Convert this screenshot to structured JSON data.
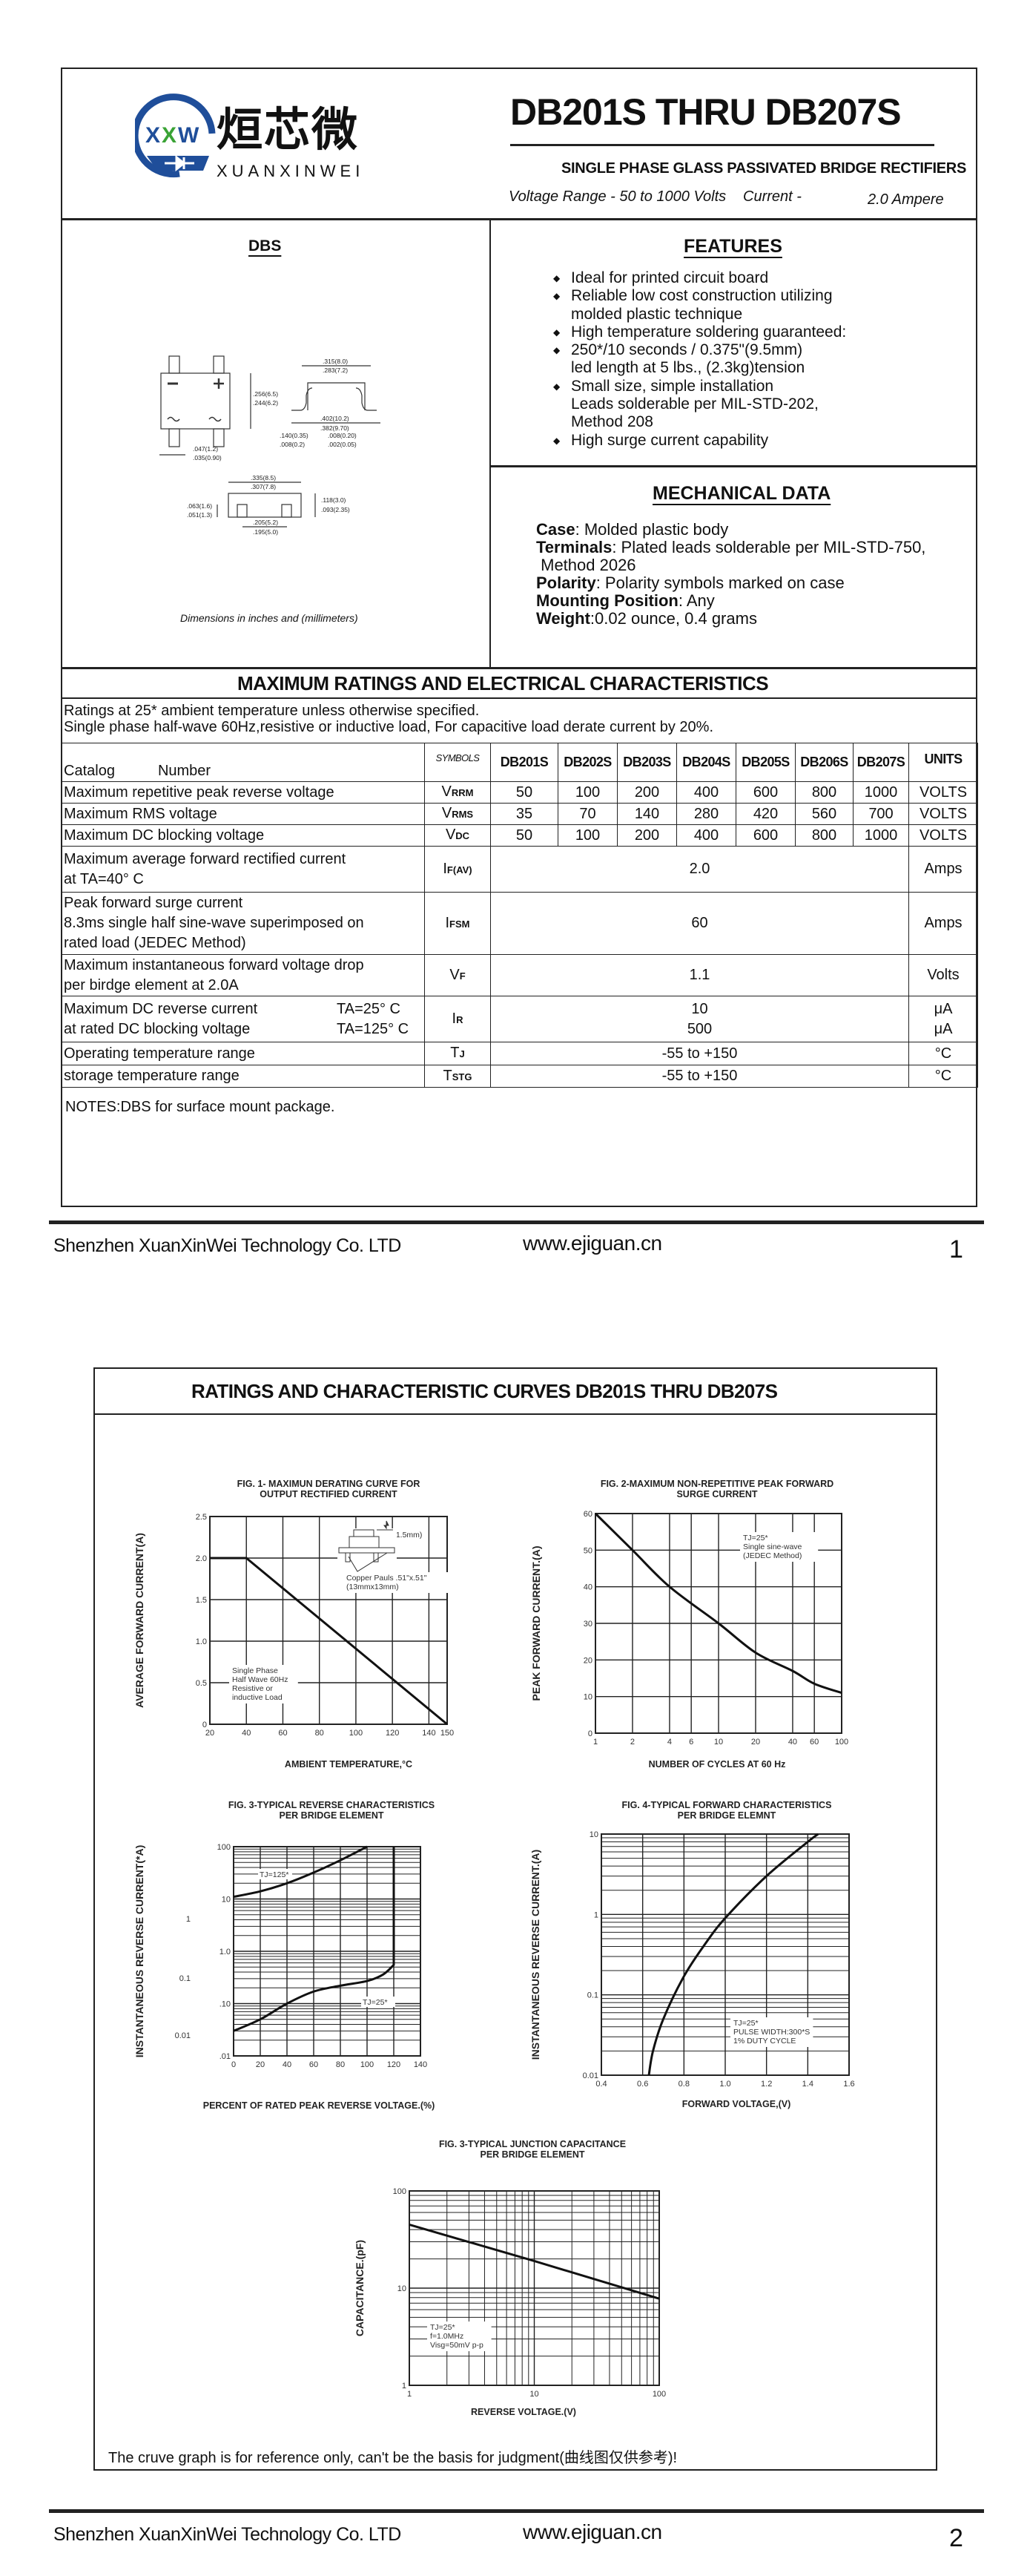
{
  "header": {
    "logo": {
      "mark": "XXW",
      "brand_cn": "烜芯微",
      "brand_en": "XUANXINWEI",
      "brand_color": "#1f4e9a",
      "accent_color": "#3aa335"
    },
    "title": "DB201S THRU DB207S",
    "subtitle": "SINGLE PHASE GLASS PASSIVATED BRIDGE RECTIFIERS",
    "voltage_range": "Voltage Range - 50 to 1000 Volts",
    "current_label": "Current -",
    "current_value": "2.0 Ampere"
  },
  "package": {
    "label": "DBS",
    "caption": "Dimensions in inches and (millimeters)",
    "dims": {
      "top_w_max": ".315(8.0)",
      "top_w_min": ".283(7.2)",
      "h_max": ".256(6.5)",
      "h_min": ".244(6.2)",
      "span_max": ".402(10.2)",
      "span_min": ".382(9.70)",
      "lead_t_max": ".140(0.35)",
      "lead_t_min": ".008(0.2)",
      "stand_max": ".008(0.20)",
      "stand_min": ".002(0.05)",
      "lead_w_max": ".047(1.2)",
      "lead_w_min": ".035(0.90)",
      "len_max": ".335(8.5)",
      "len_min": ".307(7.8)",
      "foot_max": ".063(1.6)",
      "foot_min": ".051(1.3)",
      "ht_max": ".118(3.0)",
      "ht_min": ".093(2.35)",
      "pitch_max": ".205(5.2)",
      "pitch_min": ".195(5.0)"
    }
  },
  "features": {
    "heading": "FEATURES",
    "items": [
      [
        "Ideal for printed circuit board"
      ],
      [
        "Reliable low cost construction utilizing",
        "molded plastic technique"
      ],
      [
        "High temperature soldering guaranteed:"
      ],
      [
        "250*/10 seconds / 0.375\"(9.5mm)",
        "led length at 5 lbs., (2.3kg)tension"
      ],
      [
        "Small size, simple installation",
        "Leads solderable per MIL-STD-202,",
        "Method 208"
      ],
      [
        "High surge current capability"
      ]
    ]
  },
  "mechanical": {
    "heading": "MECHANICAL DATA",
    "items": [
      {
        "key": "Case",
        "value": ": Molded plastic body"
      },
      {
        "key": "Terminals",
        "value": ": Plated leads solderable per MIL-STD-750,",
        "cont": " Method 2026"
      },
      {
        "key": "Polarity",
        "value": ": Polarity symbols marked on case"
      },
      {
        "key": "Mounting Position",
        "value": ": Any"
      },
      {
        "key": "Weight",
        "value": ":0.02 ounce, 0.4 grams"
      }
    ]
  },
  "ratings": {
    "heading": "MAXIMUM RATINGS AND ELECTRICAL CHARACTERISTICS",
    "notes": [
      "Ratings at 25* ambient temperature unless otherwise specified.",
      "Single phase half-wave 60Hz,resistive or inductive load, For capacitive load derate current by 20%."
    ],
    "table": {
      "header": {
        "catalog": "Catalog",
        "number": "Number",
        "symbols": "SYMBOLS",
        "parts": [
          "DB201S",
          "DB202S",
          "DB203S",
          "DB204S",
          "DB205S",
          "DB206S",
          "DB207S"
        ],
        "units": "UNITS"
      },
      "rows": [
        {
          "param": [
            "Maximum repetitive peak reverse voltage"
          ],
          "sym": {
            "main": "V",
            "sub": "RRM"
          },
          "values": [
            "50",
            "100",
            "200",
            "400",
            "600",
            "800",
            "1000"
          ],
          "unit": [
            "VOLTS"
          ]
        },
        {
          "param": [
            "Maximum RMS voltage"
          ],
          "sym": {
            "main": "V",
            "sub": "RMS"
          },
          "values": [
            "35",
            "70",
            "140",
            "280",
            "420",
            "560",
            "700"
          ],
          "unit": [
            "VOLTS"
          ]
        },
        {
          "param": [
            "Maximum DC blocking voltage"
          ],
          "sym": {
            "main": "V",
            "sub": "DC"
          },
          "values": [
            "50",
            "100",
            "200",
            "400",
            "600",
            "800",
            "1000"
          ],
          "unit": [
            "VOLTS"
          ]
        },
        {
          "param": [
            "Maximum average forward rectified current",
            "at TA=40° C"
          ],
          "sym": {
            "main": "I",
            "sub": "F(AV)"
          },
          "value": [
            "2.0"
          ],
          "unit": [
            "Amps"
          ]
        },
        {
          "param": [
            "Peak forward surge current",
            "8.3ms single half sine-wave superimposed on",
            "rated load (JEDEC Method)"
          ],
          "sym": {
            "main": "I",
            "sub": "FSM"
          },
          "value": [
            "60"
          ],
          "unit": [
            "Amps"
          ]
        },
        {
          "param": [
            "Maximum instantaneous forward voltage drop",
            "per birdge element at 2.0A"
          ],
          "sym": {
            "main": "V",
            "sub": "F"
          },
          "value": [
            "1.1"
          ],
          "unit": [
            "Volts"
          ]
        },
        {
          "param": [
            "Maximum DC reverse current",
            "at rated DC blocking voltage"
          ],
          "cond": [
            "TA=25° C",
            "TA=125° C"
          ],
          "sym": {
            "main": "I",
            "sub": "R"
          },
          "value": [
            "10",
            "500"
          ],
          "unit": [
            "μA",
            "μA"
          ]
        },
        {
          "param": [
            "Operating temperature range"
          ],
          "sym": {
            "main": "T",
            "sub": "J"
          },
          "value": [
            "-55 to +150"
          ],
          "unit": [
            "°C"
          ]
        },
        {
          "param": [
            "storage temperature range"
          ],
          "sym": {
            "main": "T",
            "sub": "STG"
          },
          "value": [
            "-55 to +150"
          ],
          "unit": [
            "°C"
          ]
        }
      ]
    },
    "footnote": "NOTES:DBS for surface mount package."
  },
  "footer": {
    "company": "Shenzhen XuanXinWei Technology Co. LTD",
    "website": "www.ejiguan.cn",
    "page1": "1",
    "page2": "2"
  },
  "page2": {
    "title": "RATINGS AND CHARACTERISTIC CURVES DB201S THRU DB207S",
    "disclaimer": "The cruve graph is for reference only, can't be the basis for judgment(曲线图仅供参考)!"
  },
  "chart_data": [
    {
      "type": "line",
      "title_lines": [
        "FIG. 1- MAXIMUN DERATING CURVE FOR",
        "OUTPUT RECTIFIED CURRENT"
      ],
      "xlabel": "AMBIENT TEMPERATURE,°C",
      "ylabel": "AVERAGE FORWARD CURRENT(A)",
      "x_scale": "linear",
      "y_scale": "linear",
      "xlim": [
        20,
        150
      ],
      "ylim": [
        0,
        2.5
      ],
      "x_ticks": [
        20,
        40,
        60,
        80,
        100,
        120,
        140,
        150
      ],
      "x_tick_labels": [
        "20",
        "40",
        "60",
        "80",
        "100",
        "120",
        "140",
        "150"
      ],
      "y_ticks": [
        0,
        0.5,
        1.0,
        1.5,
        2.0,
        2.5
      ],
      "y_tick_labels": [
        "0",
        "0.5",
        "1.0",
        "1.5",
        "2.0",
        "2.5"
      ],
      "grid": true,
      "series": [
        {
          "points": [
            [
              20,
              2.0
            ],
            [
              40,
              2.0
            ],
            [
              150,
              0
            ]
          ]
        }
      ],
      "annotations": [
        {
          "lines": [
            "Single Phase",
            "Half Wave 60Hz",
            "Resistive or",
            "inductive Load"
          ]
        },
        {
          "lines": [
            "Copper Pauls .51\"x.51\"",
            "(13mmx13mm)"
          ]
        },
        {
          "lines": [
            "0.6\"(1.5mm)"
          ]
        }
      ]
    },
    {
      "type": "line",
      "title_lines": [
        "FIG. 2-MAXIMUM NON-REPETITIVE PEAK FORWARD",
        "SURGE CURRENT"
      ],
      "xlabel": "NUMBER OF CYCLES AT 60 Hz",
      "ylabel": "PEAK  FORWARD CURRENT.(A)",
      "x_scale": "log",
      "y_scale": "linear",
      "xlim": [
        1,
        100
      ],
      "ylim": [
        0,
        60
      ],
      "x_ticks": [
        1,
        2,
        4,
        6,
        10,
        20,
        40,
        60,
        100
      ],
      "x_tick_labels": [
        "1",
        "2",
        "4",
        "6",
        "10",
        "20",
        "40",
        "60",
        "100"
      ],
      "y_ticks": [
        0,
        10,
        20,
        30,
        40,
        50,
        60
      ],
      "y_tick_labels": [
        "0",
        "10",
        "20",
        "30",
        "40",
        "50",
        "60"
      ],
      "grid": true,
      "series": [
        {
          "points": [
            [
              1,
              60
            ],
            [
              2,
              50
            ],
            [
              4,
              40
            ],
            [
              10,
              30
            ],
            [
              20,
              22
            ],
            [
              40,
              17
            ],
            [
              60,
              13.5
            ],
            [
              100,
              11
            ]
          ]
        }
      ],
      "annotations": [
        {
          "lines": [
            "TJ=25*",
            "Single sine-wave",
            "(JEDEC Method)"
          ]
        }
      ]
    },
    {
      "type": "line",
      "title_lines": [
        "FIG. 3-TYPICAL REVERSE CHARACTERISTICS",
        "PER BRIDGE ELEMENT"
      ],
      "xlabel": "PERCENT OF RATED PEAK REVERSE VOLTAGE.(%)",
      "ylabel": "INSTANTANEOUS REVERSE CURRENT(*A)",
      "x_scale": "linear",
      "y_scale": "log",
      "xlim": [
        0,
        140
      ],
      "ylim": [
        0.01,
        100
      ],
      "x_ticks": [
        0,
        20,
        40,
        60,
        80,
        100,
        120,
        140
      ],
      "x_tick_labels": [
        "0",
        "20",
        "40",
        "60",
        "80",
        "100",
        "120",
        "140"
      ],
      "y_ticks": [
        0.01,
        0.1,
        1,
        10,
        100
      ],
      "y_tick_labels": [
        ".01",
        ".10",
        "1.0",
        "10",
        "100"
      ],
      "outer_y_labels": [
        "1",
        "0.1",
        "0.01"
      ],
      "grid": true,
      "series": [
        {
          "name": "TJ=125*",
          "points": [
            [
              0,
              11
            ],
            [
              20,
              14
            ],
            [
              40,
              20
            ],
            [
              60,
              32
            ],
            [
              80,
              55
            ],
            [
              100,
              100
            ]
          ]
        },
        {
          "name": "TJ=25*",
          "points": [
            [
              0,
              0.03
            ],
            [
              20,
              0.05
            ],
            [
              40,
              0.1
            ],
            [
              60,
              0.17
            ],
            [
              80,
              0.22
            ],
            [
              100,
              0.27
            ],
            [
              112,
              0.36
            ],
            [
              120,
              0.55
            ],
            [
              120,
              100
            ]
          ]
        }
      ],
      "annotations": []
    },
    {
      "type": "line",
      "title_lines": [
        "FIG. 4-TYPICAL FORWARD CHARACTERISTICS",
        "PER BRIDGE ELEMNT"
      ],
      "xlabel": "FORWARD VOLTAGE,(V)",
      "ylabel": "INSTANTANEOUS REVERSE CURRENT.(A)",
      "x_scale": "linear",
      "y_scale": "log",
      "xlim": [
        0.4,
        1.6
      ],
      "ylim": [
        0.01,
        10
      ],
      "x_ticks": [
        0.4,
        0.6,
        0.8,
        1.0,
        1.2,
        1.4,
        1.6
      ],
      "x_tick_labels": [
        "0.4",
        "0.6",
        "0.8",
        "1.0",
        "1.2",
        "1.4",
        "1.6"
      ],
      "y_ticks": [
        0.01,
        0.1,
        1,
        10
      ],
      "y_tick_labels": [
        "0.01",
        "0.1",
        "1",
        "10"
      ],
      "grid": true,
      "series": [
        {
          "points": [
            [
              0.63,
              0.01
            ],
            [
              0.65,
              0.02
            ],
            [
              0.7,
              0.05
            ],
            [
              0.8,
              0.17
            ],
            [
              0.9,
              0.42
            ],
            [
              1.0,
              0.9
            ],
            [
              1.2,
              3.0
            ],
            [
              1.4,
              8.0
            ],
            [
              1.45,
              10
            ]
          ]
        }
      ],
      "annotations": [
        {
          "lines": [
            "TJ=25*",
            "PULSE WIDTH:300*S",
            "1% DUTY CYCLE"
          ]
        }
      ]
    },
    {
      "type": "line",
      "title_lines": [
        "FIG. 3-TYPICAL JUNCTION CAPACITANCE",
        "PER BRIDGE ELEMENT"
      ],
      "xlabel": "REVERSE VOLTAGE.(V)",
      "ylabel": "CAPACITANCE.(pF)",
      "x_scale": "log",
      "y_scale": "log",
      "xlim": [
        1,
        100
      ],
      "ylim": [
        1,
        100
      ],
      "x_ticks": [
        1,
        10,
        100
      ],
      "x_tick_labels": [
        "1",
        "10",
        "100"
      ],
      "y_ticks": [
        1,
        10,
        100
      ],
      "y_tick_labels": [
        "1",
        "10",
        "100"
      ],
      "grid": true,
      "series": [
        {
          "points": [
            [
              1,
              45
            ],
            [
              10,
              19
            ],
            [
              100,
              7.8
            ]
          ]
        }
      ],
      "annotations": [
        {
          "lines": [
            "TJ=25*",
            "f=1.0MHz",
            "Visg=50mV p-p"
          ]
        }
      ]
    }
  ]
}
